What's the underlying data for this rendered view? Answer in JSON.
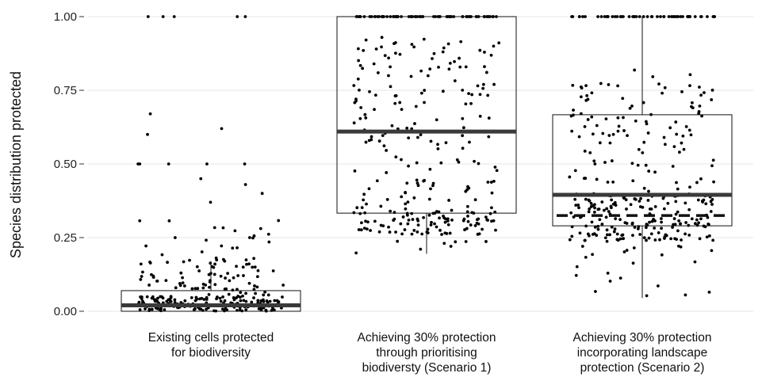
{
  "chart_data": {
    "type": "box",
    "ylabel": "Species distribution protected",
    "xlabel": "",
    "ylim": [
      0,
      1
    ],
    "yticks": [
      "0.00",
      "0.25",
      "0.50",
      "0.75",
      "1.00"
    ],
    "grid": true,
    "legend": "none",
    "reference_line": {
      "y": 0.325,
      "style": "dashed"
    },
    "categories": [
      [
        "Existing cells protected",
        "for biodiversity"
      ],
      [
        "Achieving 30% protection",
        "through prioritising",
        "biodiversty (Scenario 1)"
      ],
      [
        "Achieving 30% protection",
        "incorporating landscape",
        "protection (Scenario 2)"
      ]
    ],
    "boxes": [
      {
        "min": 0.0,
        "q1": 0.0,
        "median": 0.02,
        "q3": 0.07,
        "max": 0.17
      },
      {
        "min": 0.195,
        "q1": 0.333,
        "median": 0.61,
        "q3": 1.0,
        "max": 1.0
      },
      {
        "min": 0.045,
        "q1": 0.29,
        "median": 0.395,
        "q3": 0.667,
        "max": 1.0
      }
    ]
  },
  "colors": {
    "points": "#000000",
    "box": "#111111",
    "grid": "#e6e6e6"
  }
}
